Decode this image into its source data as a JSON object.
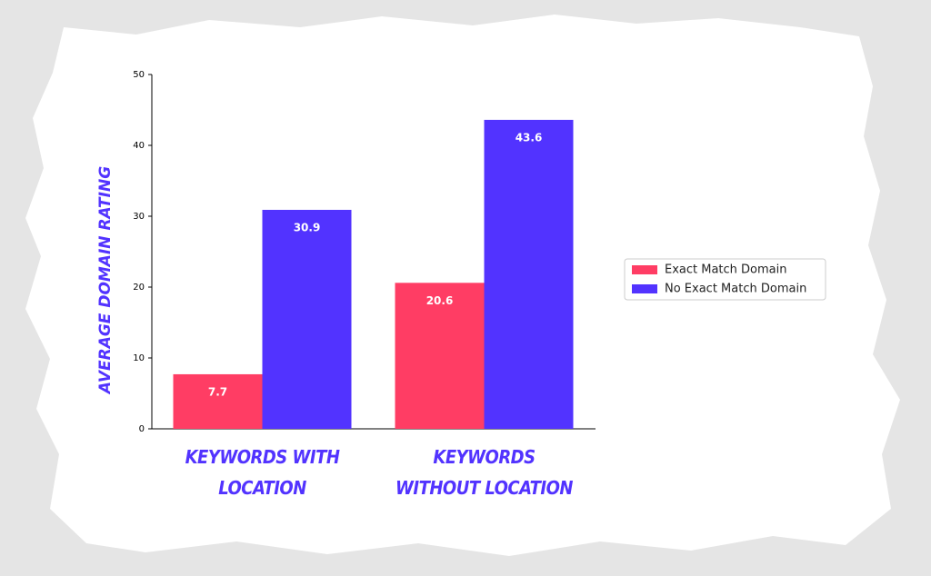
{
  "chart_data": {
    "type": "bar",
    "categories": [
      "KEYWORDS WITH LOCATION",
      "KEYWORDS WITHOUT LOCATION"
    ],
    "series": [
      {
        "name": "Exact Match Domain",
        "color": "#ff3d64",
        "values": [
          7.7,
          20.6
        ]
      },
      {
        "name": "No Exact Match Domain",
        "color": "#5233ff",
        "values": [
          30.9,
          43.6
        ]
      }
    ],
    "y_label": "AVERAGE DOMAIN RATING",
    "ylim": [
      0,
      50
    ],
    "yticks": [
      0,
      10,
      20,
      30,
      40,
      50
    ],
    "grid": false,
    "legend": "right"
  }
}
